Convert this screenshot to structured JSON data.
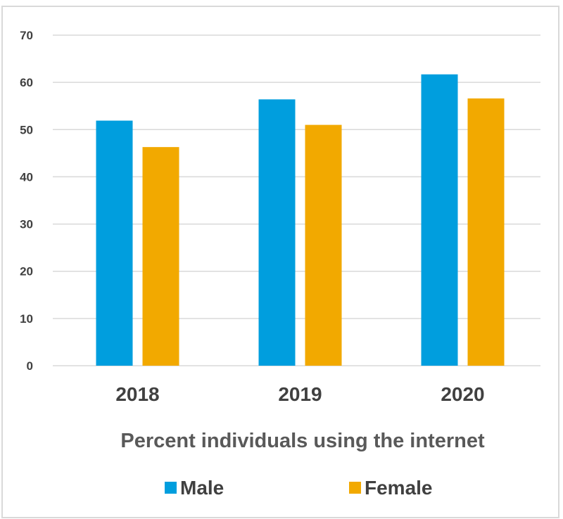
{
  "chart_data": {
    "type": "bar",
    "categories": [
      "2018",
      "2019",
      "2020"
    ],
    "series": [
      {
        "name": "Male",
        "values": [
          51.9,
          56.4,
          61.7
        ],
        "color": "#009ede"
      },
      {
        "name": "Female",
        "values": [
          46.3,
          51.0,
          56.6
        ],
        "color": "#f2a900"
      }
    ],
    "xlabel": "Percent individuals using the internet",
    "ylabel": "",
    "ylim": [
      0,
      70
    ],
    "yticks": [
      "0",
      "10",
      "20",
      "30",
      "40",
      "50",
      "60",
      "70"
    ],
    "grid": true,
    "gridline_color": "#d9d9d9",
    "legend_position": "bottom"
  }
}
